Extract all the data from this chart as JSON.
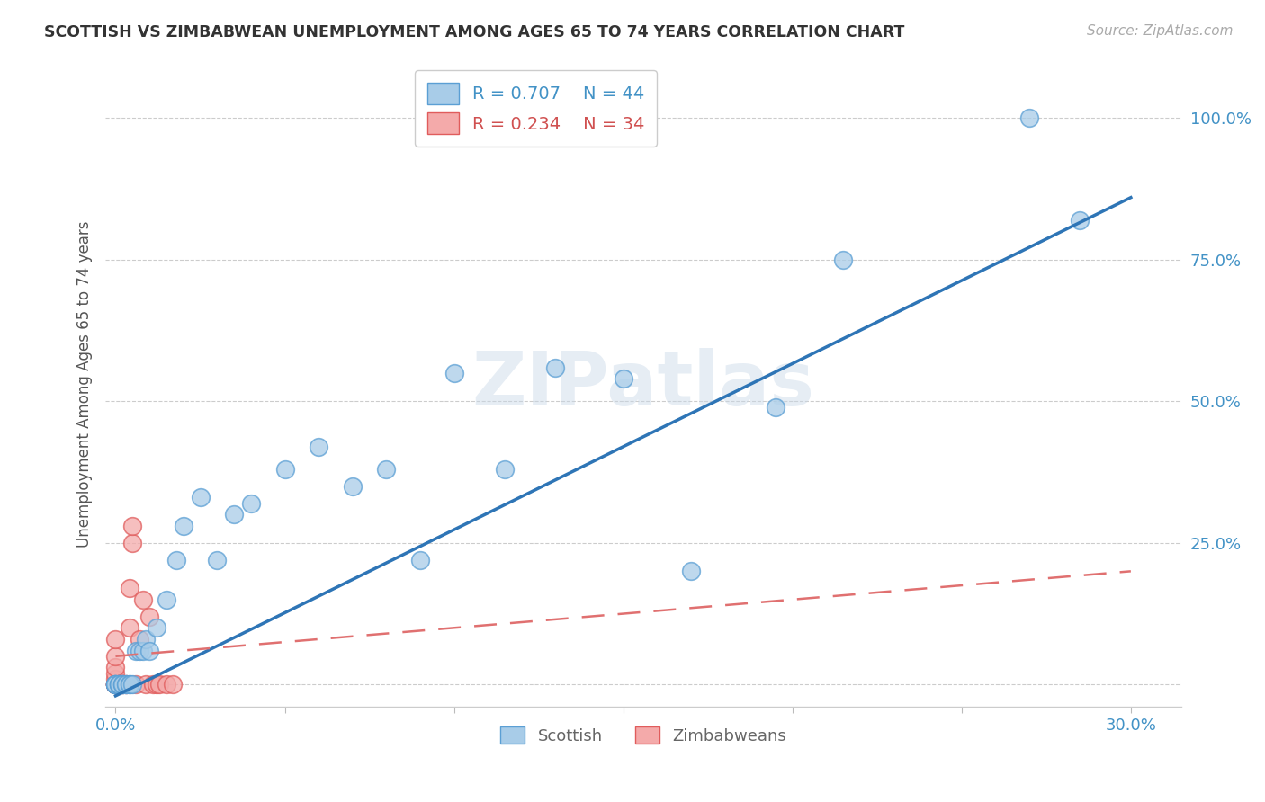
{
  "title": "SCOTTISH VS ZIMBABWEAN UNEMPLOYMENT AMONG AGES 65 TO 74 YEARS CORRELATION CHART",
  "source": "Source: ZipAtlas.com",
  "ylabel": "Unemployment Among Ages 65 to 74 years",
  "xlim": [
    -0.003,
    0.315
  ],
  "ylim": [
    -0.04,
    1.1
  ],
  "scottish_R": 0.707,
  "scottish_N": 44,
  "zimbabwean_R": 0.234,
  "zimbabwean_N": 34,
  "scottish_color": "#a8cce8",
  "scottish_edge_color": "#5b9fd4",
  "zimbabwean_color": "#f4aaaa",
  "zimbabwean_edge_color": "#e05c5c",
  "scottish_line_color": "#2e75b6",
  "zimbabwean_line_color": "#e07070",
  "watermark": "ZIPatlas",
  "scottish_x": [
    0.0,
    0.0,
    0.0,
    0.0,
    0.0,
    0.001,
    0.001,
    0.001,
    0.001,
    0.002,
    0.002,
    0.002,
    0.003,
    0.003,
    0.004,
    0.004,
    0.005,
    0.006,
    0.007,
    0.008,
    0.009,
    0.01,
    0.012,
    0.015,
    0.018,
    0.02,
    0.025,
    0.03,
    0.035,
    0.04,
    0.05,
    0.06,
    0.07,
    0.08,
    0.09,
    0.1,
    0.115,
    0.13,
    0.15,
    0.17,
    0.195,
    0.215,
    0.27,
    0.285
  ],
  "scottish_y": [
    0.0,
    0.0,
    0.0,
    0.0,
    0.0,
    0.0,
    0.0,
    0.0,
    0.0,
    0.0,
    0.0,
    0.0,
    0.0,
    0.0,
    0.0,
    0.0,
    0.0,
    0.06,
    0.06,
    0.06,
    0.08,
    0.06,
    0.1,
    0.15,
    0.22,
    0.28,
    0.33,
    0.22,
    0.3,
    0.32,
    0.38,
    0.42,
    0.35,
    0.38,
    0.22,
    0.55,
    0.38,
    0.56,
    0.54,
    0.2,
    0.49,
    0.75,
    1.0,
    0.82
  ],
  "zimbabwean_x": [
    0.0,
    0.0,
    0.0,
    0.0,
    0.0,
    0.0,
    0.0,
    0.0,
    0.0,
    0.0,
    0.0,
    0.0,
    0.001,
    0.001,
    0.001,
    0.001,
    0.002,
    0.002,
    0.003,
    0.003,
    0.004,
    0.004,
    0.005,
    0.005,
    0.006,
    0.007,
    0.008,
    0.009,
    0.01,
    0.011,
    0.012,
    0.013,
    0.015,
    0.017
  ],
  "zimbabwean_y": [
    0.0,
    0.0,
    0.0,
    0.0,
    0.0,
    0.0,
    0.0,
    0.01,
    0.02,
    0.03,
    0.05,
    0.08,
    0.0,
    0.0,
    0.0,
    0.0,
    0.0,
    0.0,
    0.0,
    0.0,
    0.1,
    0.17,
    0.25,
    0.28,
    0.0,
    0.08,
    0.15,
    0.0,
    0.12,
    0.0,
    0.0,
    0.0,
    0.0,
    0.0
  ],
  "scottish_line_x0": 0.0,
  "scottish_line_y0": -0.02,
  "scottish_line_x1": 0.3,
  "scottish_line_y1": 0.86,
  "zimbabwean_line_x0": 0.0,
  "zimbabwean_line_y0": 0.05,
  "zimbabwean_line_x1": 0.3,
  "zimbabwean_line_y1": 0.2
}
